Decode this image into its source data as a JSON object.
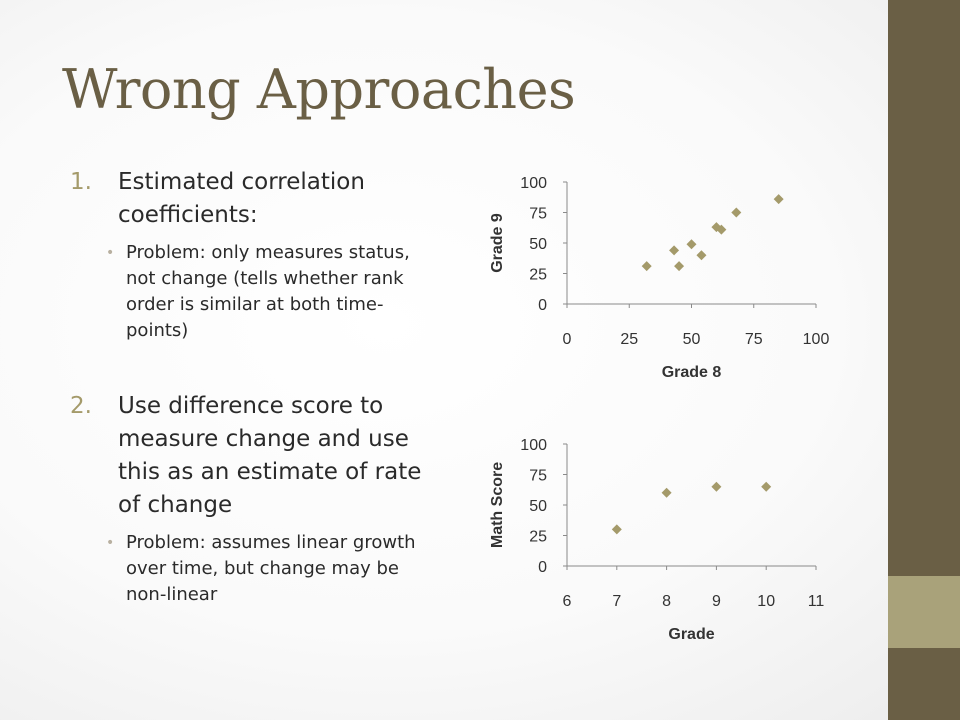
{
  "slide": {
    "title": "Wrong Approaches",
    "items": [
      {
        "num": "1.",
        "text": "Estimated correlation coefficients:",
        "sub": "Problem: only measures status, not change (tells whether rank order is similar at both time-points)"
      },
      {
        "num": "2.",
        "text": "Use difference score to measure change and use this as an estimate of rate of change",
        "sub": "Problem: assumes linear growth over time, but change may be non-linear"
      }
    ],
    "bullet_glyph": "•"
  },
  "colors": {
    "title": "#6a5f45",
    "marker": "#a49a6a",
    "bar_dark": "#6a5f45",
    "bar_light": "#a9a27a"
  },
  "chart_data": [
    {
      "type": "scatter",
      "xlabel": "Grade 8",
      "ylabel": "Grade 9",
      "xlim": [
        0,
        100
      ],
      "ylim": [
        0,
        100
      ],
      "xticks": [
        0,
        25,
        50,
        75,
        100
      ],
      "yticks": [
        0,
        25,
        50,
        75,
        100
      ],
      "grid": false,
      "x": [
        32,
        43,
        45,
        50,
        54,
        60,
        62,
        68,
        85
      ],
      "y": [
        31,
        44,
        31,
        49,
        40,
        63,
        61,
        75,
        86
      ]
    },
    {
      "type": "scatter",
      "xlabel": "Grade",
      "ylabel": "Math Score",
      "xlim": [
        6,
        11
      ],
      "ylim": [
        0,
        100
      ],
      "xticks": [
        6,
        7,
        8,
        9,
        10,
        11
      ],
      "yticks": [
        0,
        25,
        50,
        75,
        100
      ],
      "grid": false,
      "x": [
        7,
        8,
        9,
        10
      ],
      "y": [
        30,
        60,
        65,
        65
      ]
    }
  ]
}
